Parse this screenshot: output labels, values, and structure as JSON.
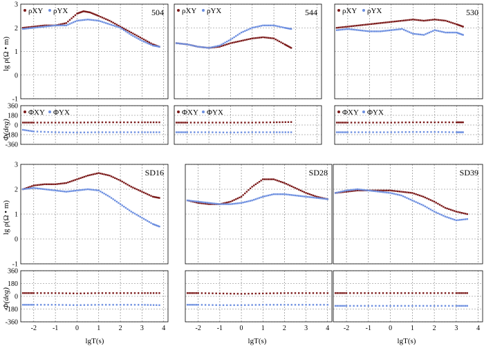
{
  "figure": {
    "left_ylabel_rho": "lg ρ(Ω • m)",
    "left_ylabel_phi": "Φ(deg)",
    "xlabel": "lgT(s)"
  },
  "colors": {
    "xy": "#7b1a1a",
    "yx": "#6d8fe0"
  },
  "chart_data": [
    {
      "type": "scatter",
      "site": "504",
      "panel": "rho",
      "legend": [
        "ρXY",
        "ρYX"
      ],
      "legend_position": "top-left",
      "xlim": [
        -2.6,
        4.2
      ],
      "ylim": [
        -1,
        3
      ],
      "yticks": [
        -1,
        0,
        1,
        2,
        3
      ],
      "grid": true,
      "series": [
        {
          "name": "ρXY",
          "x": [
            -2.5,
            -2,
            -1.5,
            -1,
            -0.5,
            0,
            0.3,
            0.6,
            1,
            1.5,
            2,
            2.5,
            3,
            3.5,
            3.8
          ],
          "y": [
            2.0,
            2.05,
            2.1,
            2.1,
            2.2,
            2.6,
            2.7,
            2.65,
            2.5,
            2.3,
            2.05,
            1.8,
            1.55,
            1.3,
            1.2
          ]
        },
        {
          "name": "ρYX",
          "x": [
            -2.5,
            -2,
            -1.5,
            -1,
            -0.5,
            0,
            0.5,
            1,
            1.5,
            2,
            2.5,
            3,
            3.5,
            3.8
          ],
          "y": [
            1.95,
            2.0,
            2.05,
            2.1,
            2.1,
            2.3,
            2.35,
            2.3,
            2.15,
            2.0,
            1.7,
            1.45,
            1.25,
            1.2
          ]
        }
      ]
    },
    {
      "type": "scatter",
      "site": "544",
      "panel": "rho",
      "legend": [
        "ρXY",
        "ρYX"
      ],
      "legend_position": "top-left",
      "xlim": [
        -2.6,
        4.2
      ],
      "ylim": [
        -1,
        3
      ],
      "yticks": [
        -1,
        0,
        1,
        2,
        3
      ],
      "grid": true,
      "series": [
        {
          "name": "ρXY",
          "x": [
            -2.5,
            -2,
            -1.5,
            -1,
            -0.5,
            0,
            0.5,
            1,
            1.5,
            2,
            2.5,
            2.8
          ],
          "y": [
            1.35,
            1.3,
            1.2,
            1.15,
            1.2,
            1.35,
            1.45,
            1.55,
            1.6,
            1.55,
            1.3,
            1.15
          ]
        },
        {
          "name": "ρYX",
          "x": [
            -2.5,
            -2,
            -1.5,
            -1,
            -0.5,
            0,
            0.5,
            1,
            1.5,
            2,
            2.5,
            2.8
          ],
          "y": [
            1.35,
            1.3,
            1.2,
            1.15,
            1.25,
            1.5,
            1.8,
            2.0,
            2.1,
            2.1,
            2.0,
            1.95
          ]
        }
      ]
    },
    {
      "type": "scatter",
      "site": "530",
      "panel": "rho",
      "legend": [
        "ρXY",
        "ρYX"
      ],
      "legend_position": "top-left",
      "xlim": [
        -2.6,
        4.2
      ],
      "ylim": [
        -1,
        3
      ],
      "yticks": [
        -1,
        0,
        1,
        2,
        3
      ],
      "grid": true,
      "series": [
        {
          "name": "ρXY",
          "x": [
            -2.5,
            -2,
            -1.5,
            -1,
            -0.5,
            0,
            0.5,
            1,
            1.5,
            2,
            2.5,
            3,
            3.3
          ],
          "y": [
            2.0,
            2.05,
            2.1,
            2.15,
            2.2,
            2.25,
            2.3,
            2.35,
            2.3,
            2.35,
            2.3,
            2.15,
            2.05
          ]
        },
        {
          "name": "ρYX",
          "x": [
            -2.5,
            -2,
            -1.5,
            -1,
            -0.5,
            0,
            0.5,
            1,
            1.5,
            2,
            2.5,
            3,
            3.3
          ],
          "y": [
            1.9,
            1.95,
            1.9,
            1.85,
            1.85,
            1.9,
            1.95,
            1.75,
            1.7,
            1.9,
            1.8,
            1.8,
            1.7
          ]
        }
      ]
    },
    {
      "type": "scatter",
      "site": "504",
      "panel": "phase",
      "legend": [
        "ΦXY",
        "ΦYX"
      ],
      "legend_position": "top-left",
      "xlim": [
        -2.6,
        4.2
      ],
      "ylim": [
        -360,
        360
      ],
      "yticks": [
        -360,
        -180,
        0,
        180,
        360
      ],
      "grid": true,
      "series": [
        {
          "name": "ΦXY",
          "x": [
            -2.5,
            -2,
            -1,
            0,
            1,
            2,
            3,
            3.8
          ],
          "y": [
            45,
            45,
            45,
            45,
            50,
            50,
            50,
            50
          ]
        },
        {
          "name": "ΦYX",
          "x": [
            -2.5,
            -2,
            -1,
            0,
            1,
            2,
            3,
            3.8
          ],
          "y": [
            -90,
            -120,
            -135,
            -140,
            -135,
            -135,
            -135,
            -135
          ]
        }
      ]
    },
    {
      "type": "scatter",
      "site": "544",
      "panel": "phase",
      "legend": [
        "ΦXY",
        "ΦYX"
      ],
      "legend_position": "top-left",
      "xlim": [
        -2.6,
        4.2
      ],
      "ylim": [
        -360,
        360
      ],
      "yticks": [
        -360,
        -180,
        0,
        180,
        360
      ],
      "grid": true,
      "series": [
        {
          "name": "ΦXY",
          "x": [
            -2.5,
            -2,
            -1,
            0,
            1,
            2,
            2.8
          ],
          "y": [
            45,
            45,
            45,
            45,
            45,
            50,
            55
          ]
        },
        {
          "name": "ΦYX",
          "x": [
            -2.5,
            -2,
            -1,
            0,
            1,
            2,
            2.8
          ],
          "y": [
            -135,
            -135,
            -135,
            -140,
            -135,
            -135,
            -135
          ]
        }
      ]
    },
    {
      "type": "scatter",
      "site": "530",
      "panel": "phase",
      "legend": [
        "ΦXY",
        "ΦYX"
      ],
      "legend_position": "top-left",
      "xlim": [
        -2.6,
        4.2
      ],
      "ylim": [
        -360,
        360
      ],
      "yticks": [
        -360,
        -180,
        0,
        180,
        360
      ],
      "grid": true,
      "series": [
        {
          "name": "ΦXY",
          "x": [
            -2.5,
            -2,
            -1,
            0,
            1,
            2,
            3,
            3.3
          ],
          "y": [
            45,
            45,
            45,
            45,
            50,
            50,
            50,
            50
          ]
        },
        {
          "name": "ΦYX",
          "x": [
            -2.5,
            -2,
            -1,
            0,
            1,
            2,
            3,
            3.3
          ],
          "y": [
            -135,
            -135,
            -135,
            -135,
            -130,
            -130,
            -135,
            -135
          ]
        }
      ]
    },
    {
      "type": "scatter",
      "site": "SD16",
      "panel": "rho",
      "xlim": [
        -2.6,
        4.2
      ],
      "ylim": [
        -1,
        3
      ],
      "yticks": [
        -1,
        0,
        1,
        2,
        3
      ],
      "grid": true,
      "series": [
        {
          "x": [
            -2.5,
            -2,
            -1.5,
            -1,
            -0.5,
            0,
            0.5,
            1,
            1.5,
            2,
            2.5,
            3,
            3.5,
            3.8
          ],
          "y": [
            2.0,
            2.15,
            2.2,
            2.2,
            2.25,
            2.4,
            2.55,
            2.65,
            2.55,
            2.35,
            2.1,
            1.9,
            1.7,
            1.65
          ]
        },
        {
          "x": [
            -2.5,
            -2,
            -1.5,
            -1,
            -0.5,
            0,
            0.5,
            1,
            1.5,
            2,
            2.5,
            3,
            3.5,
            3.8
          ],
          "y": [
            2.0,
            2.05,
            2.0,
            1.95,
            1.9,
            1.95,
            2.0,
            1.95,
            1.7,
            1.4,
            1.1,
            0.85,
            0.6,
            0.5
          ]
        }
      ]
    },
    {
      "type": "scatter",
      "site": "SD28",
      "panel": "rho",
      "xlim": [
        -2.6,
        4.2
      ],
      "ylim": [
        -1,
        3
      ],
      "yticks": [
        -1,
        0,
        1,
        2,
        3
      ],
      "grid": true,
      "series": [
        {
          "x": [
            -2.5,
            -2,
            -1.5,
            -1,
            -0.5,
            0,
            0.5,
            1,
            1.5,
            2,
            2.5,
            3,
            3.5,
            4
          ],
          "y": [
            1.55,
            1.45,
            1.4,
            1.4,
            1.5,
            1.7,
            2.1,
            2.4,
            2.4,
            2.25,
            2.05,
            1.85,
            1.7,
            1.6
          ]
        },
        {
          "x": [
            -2.5,
            -2,
            -1.5,
            -1,
            -0.5,
            0,
            0.5,
            1,
            1.5,
            2,
            2.5,
            3,
            3.5,
            4
          ],
          "y": [
            1.55,
            1.5,
            1.45,
            1.4,
            1.4,
            1.45,
            1.55,
            1.7,
            1.8,
            1.8,
            1.75,
            1.7,
            1.65,
            1.6
          ]
        }
      ]
    },
    {
      "type": "scatter",
      "site": "SD39",
      "panel": "rho",
      "xlim": [
        -2.6,
        4.2
      ],
      "ylim": [
        -1,
        3
      ],
      "yticks": [
        -1,
        0,
        1,
        2,
        3
      ],
      "grid": true,
      "series": [
        {
          "x": [
            -2.5,
            -2,
            -1.5,
            -1,
            -0.5,
            0,
            0.5,
            1,
            1.5,
            2,
            2.5,
            3,
            3.5
          ],
          "y": [
            1.85,
            1.9,
            1.95,
            1.95,
            1.95,
            1.95,
            1.9,
            1.85,
            1.7,
            1.5,
            1.25,
            1.1,
            1.0
          ]
        },
        {
          "x": [
            -2.5,
            -2,
            -1.5,
            -1,
            -0.5,
            0,
            0.5,
            1,
            1.5,
            2,
            2.5,
            3,
            3.5
          ],
          "y": [
            1.85,
            1.95,
            2.0,
            1.95,
            1.9,
            1.85,
            1.75,
            1.55,
            1.35,
            1.1,
            0.9,
            0.75,
            0.8
          ]
        }
      ]
    },
    {
      "type": "scatter",
      "site": "SD16",
      "panel": "phase",
      "xlim": [
        -2.6,
        4.2
      ],
      "ylim": [
        -360,
        360
      ],
      "yticks": [
        -360,
        -180,
        0,
        180,
        360
      ],
      "grid": true,
      "series": [
        {
          "x": [
            -2.5,
            -2,
            -1,
            0,
            1,
            2,
            3,
            3.8
          ],
          "y": [
            45,
            45,
            45,
            40,
            45,
            45,
            45,
            45
          ]
        },
        {
          "x": [
            -2.5,
            -2,
            -1,
            0,
            1,
            2,
            3,
            3.8
          ],
          "y": [
            -120,
            -120,
            -120,
            -125,
            -120,
            -120,
            -120,
            -125
          ]
        }
      ]
    },
    {
      "type": "scatter",
      "site": "SD28",
      "panel": "phase",
      "xlim": [
        -2.6,
        4.2
      ],
      "ylim": [
        -360,
        360
      ],
      "yticks": [
        -360,
        -180,
        0,
        180,
        360
      ],
      "grid": true,
      "series": [
        {
          "x": [
            -2.5,
            -2,
            -1,
            0,
            1,
            2,
            3,
            4
          ],
          "y": [
            45,
            45,
            40,
            35,
            40,
            45,
            45,
            45
          ]
        },
        {
          "x": [
            -2.5,
            -2,
            -1,
            0,
            1,
            2,
            3,
            4
          ],
          "y": [
            -120,
            -120,
            -125,
            -125,
            -120,
            -120,
            -120,
            -120
          ]
        }
      ]
    },
    {
      "type": "scatter",
      "site": "SD39",
      "panel": "phase",
      "xlim": [
        -2.6,
        4.2
      ],
      "ylim": [
        -360,
        360
      ],
      "yticks": [
        -360,
        -180,
        0,
        180,
        360
      ],
      "grid": true,
      "series": [
        {
          "x": [
            -2.5,
            -2,
            -1,
            0,
            1,
            2,
            3,
            3.5
          ],
          "y": [
            45,
            45,
            45,
            45,
            45,
            45,
            45,
            45
          ]
        },
        {
          "x": [
            -2.5,
            -2,
            -1,
            0,
            1,
            2,
            3,
            3.5
          ],
          "y": [
            -135,
            -135,
            -135,
            -135,
            -135,
            -135,
            -135,
            -135
          ]
        }
      ]
    }
  ]
}
